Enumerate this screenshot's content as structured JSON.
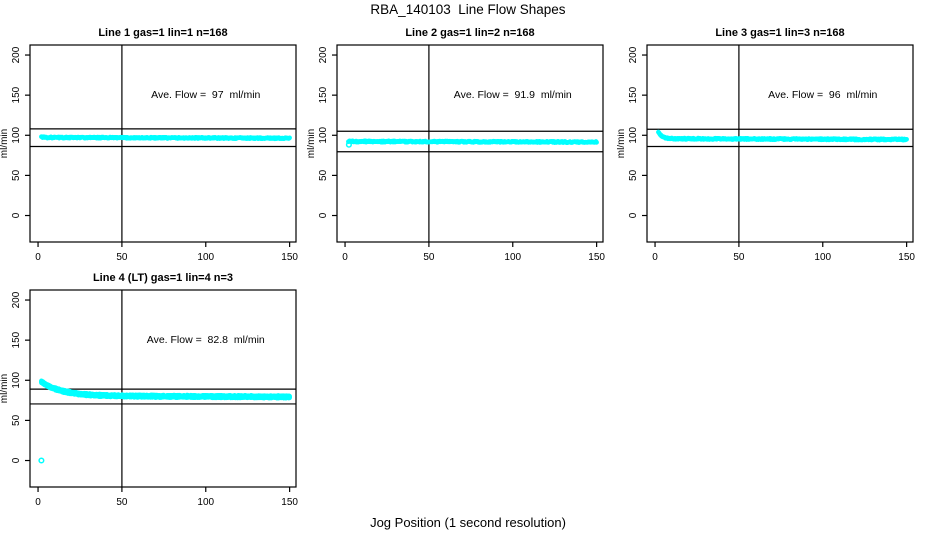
{
  "page": {
    "title": "RBA_140103  Line Flow Shapes",
    "xlabel": "Jog Position (1 second resolution)"
  },
  "colors": {
    "points": "#00ffff",
    "axis": "#000000",
    "background": "#ffffff"
  },
  "chart_data": [
    {
      "type": "scatter",
      "title": "Line 1 gas=1 lin=1 n=168",
      "annotation": "Ave. Flow =  97  ml/min",
      "ave_flow": 97,
      "n": 168,
      "ylabel": "ml/min",
      "x_ticks": [
        0,
        50,
        100,
        150
      ],
      "y_ticks": [
        0,
        50,
        100,
        150,
        200
      ],
      "xlim": [
        0,
        150
      ],
      "ylim": [
        0,
        200
      ],
      "vline_x": 50,
      "hlines": [
        108,
        86
      ],
      "series": {
        "x_start": 2,
        "x_end": 150,
        "points": 420,
        "start": 98.2,
        "settle": 97.2,
        "tau": 1.5,
        "drift": -0.9,
        "noise": 0.75,
        "runs": 1,
        "run_offsets": [
          0
        ],
        "outliers": []
      }
    },
    {
      "type": "scatter",
      "title": "Line 2 gas=1 lin=2 n=168",
      "annotation": "Ave. Flow =  91.9  ml/min",
      "ave_flow": 91.9,
      "n": 168,
      "ylabel": "ml/min",
      "x_ticks": [
        0,
        50,
        100,
        150
      ],
      "y_ticks": [
        0,
        50,
        100,
        150,
        200
      ],
      "xlim": [
        0,
        150
      ],
      "ylim": [
        0,
        200
      ],
      "vline_x": 50,
      "hlines": [
        105,
        79.5
      ],
      "series": {
        "x_start": 2,
        "x_end": 150,
        "points": 420,
        "start": 92.6,
        "settle": 92.3,
        "tau": 1.2,
        "drift": -0.8,
        "noise": 0.8,
        "runs": 1,
        "run_offsets": [
          0
        ],
        "outliers": [
          [
            2.3,
            88.3
          ]
        ]
      }
    },
    {
      "type": "scatter",
      "title": "Line 3 gas=1 lin=3 n=168",
      "annotation": "Ave. Flow =  96  ml/min",
      "ave_flow": 96,
      "n": 168,
      "ylabel": "ml/min",
      "x_ticks": [
        0,
        50,
        100,
        150
      ],
      "y_ticks": [
        0,
        50,
        100,
        150,
        200
      ],
      "xlim": [
        0,
        150
      ],
      "ylim": [
        0,
        200
      ],
      "vline_x": 50,
      "hlines": [
        107.5,
        86
      ],
      "series": {
        "x_start": 2,
        "x_end": 150,
        "points": 420,
        "start": 103.5,
        "settle": 95.8,
        "tau": 2.2,
        "drift": -1.1,
        "noise": 0.8,
        "runs": 1,
        "run_offsets": [
          0
        ],
        "outliers": []
      }
    },
    {
      "type": "scatter",
      "title": "Line 4 (LT) gas=1 lin=4 n=3",
      "annotation": "Ave. Flow =  82.8  ml/min",
      "ave_flow": 82.8,
      "n": 3,
      "ylabel": "ml/min",
      "x_ticks": [
        0,
        50,
        100,
        150
      ],
      "y_ticks": [
        0,
        50,
        100,
        150,
        200
      ],
      "xlim": [
        0,
        150
      ],
      "ylim": [
        0,
        200
      ],
      "vline_x": 50,
      "hlines": [
        89,
        70.5
      ],
      "series": {
        "x_start": 2,
        "x_end": 150,
        "points": 330,
        "start": 98.0,
        "settle": 80.6,
        "tau": 12,
        "drift": -1.3,
        "noise": 0.55,
        "runs": 3,
        "run_offsets": [
          -1.1,
          0,
          1.1
        ],
        "outliers": [
          [
            2,
            0
          ]
        ]
      }
    }
  ]
}
